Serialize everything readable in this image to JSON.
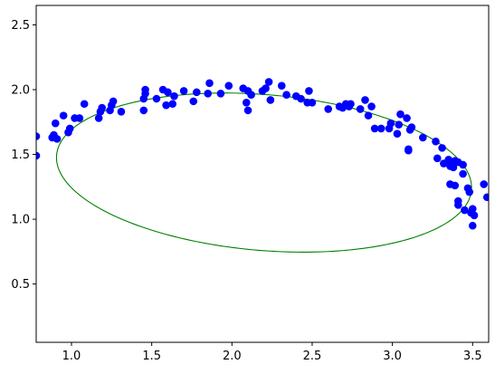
{
  "chart_data": {
    "type": "scatter",
    "title": "",
    "xlabel": "",
    "ylabel": "",
    "xlim": [
      0.78,
      3.6
    ],
    "ylim": [
      0.05,
      2.65
    ],
    "grid": false,
    "legend": "none",
    "xticks": [
      {
        "value": 1.0,
        "label": "1.0"
      },
      {
        "value": 1.5,
        "label": "1.5"
      },
      {
        "value": 2.0,
        "label": "2.0"
      },
      {
        "value": 2.5,
        "label": "2.5"
      },
      {
        "value": 3.0,
        "label": "3.0"
      },
      {
        "value": 3.5,
        "label": "3.5"
      }
    ],
    "yticks": [
      {
        "value": 0.5,
        "label": "0.5"
      },
      {
        "value": 1.0,
        "label": "1.0"
      },
      {
        "value": 1.5,
        "label": "1.5"
      },
      {
        "value": 2.0,
        "label": "2.0"
      },
      {
        "value": 2.5,
        "label": "2.5"
      }
    ],
    "series": [
      {
        "type": "scatter",
        "color": "#0000ff",
        "points": [
          [
            0.78,
            1.64
          ],
          [
            0.78,
            1.49
          ],
          [
            0.88,
            1.63
          ],
          [
            0.89,
            1.65
          ],
          [
            0.9,
            1.74
          ],
          [
            0.91,
            1.62
          ],
          [
            0.95,
            1.8
          ],
          [
            0.98,
            1.67
          ],
          [
            0.99,
            1.7
          ],
          [
            1.02,
            1.78
          ],
          [
            1.05,
            1.78
          ],
          [
            1.08,
            1.89
          ],
          [
            1.17,
            1.78
          ],
          [
            1.18,
            1.83
          ],
          [
            1.19,
            1.86
          ],
          [
            1.24,
            1.84
          ],
          [
            1.25,
            1.88
          ],
          [
            1.26,
            1.91
          ],
          [
            1.31,
            1.83
          ],
          [
            1.45,
            1.84
          ],
          [
            1.45,
            1.93
          ],
          [
            1.46,
            1.97
          ],
          [
            1.46,
            2.0
          ],
          [
            1.53,
            1.93
          ],
          [
            1.57,
            2.0
          ],
          [
            1.59,
            1.88
          ],
          [
            1.6,
            1.98
          ],
          [
            1.63,
            1.89
          ],
          [
            1.64,
            1.95
          ],
          [
            1.7,
            1.99
          ],
          [
            1.76,
            1.91
          ],
          [
            1.78,
            1.98
          ],
          [
            1.85,
            1.97
          ],
          [
            1.86,
            2.05
          ],
          [
            1.93,
            1.97
          ],
          [
            1.98,
            2.03
          ],
          [
            2.07,
            2.01
          ],
          [
            2.09,
            1.9
          ],
          [
            2.1,
            1.84
          ],
          [
            2.1,
            1.99
          ],
          [
            2.12,
            1.96
          ],
          [
            2.19,
            1.99
          ],
          [
            2.21,
            2.01
          ],
          [
            2.23,
            2.06
          ],
          [
            2.24,
            1.92
          ],
          [
            2.31,
            2.03
          ],
          [
            2.34,
            1.96
          ],
          [
            2.4,
            1.95
          ],
          [
            2.43,
            1.93
          ],
          [
            2.47,
            1.9
          ],
          [
            2.48,
            1.99
          ],
          [
            2.5,
            1.9
          ],
          [
            2.6,
            1.85
          ],
          [
            2.67,
            1.87
          ],
          [
            2.69,
            1.86
          ],
          [
            2.71,
            1.89
          ],
          [
            2.73,
            1.87
          ],
          [
            2.74,
            1.89
          ],
          [
            2.8,
            1.85
          ],
          [
            2.83,
            1.92
          ],
          [
            2.85,
            1.8
          ],
          [
            2.87,
            1.87
          ],
          [
            2.89,
            1.7
          ],
          [
            2.93,
            1.7
          ],
          [
            2.98,
            1.7
          ],
          [
            2.99,
            1.74
          ],
          [
            3.03,
            1.66
          ],
          [
            3.04,
            1.73
          ],
          [
            3.05,
            1.81
          ],
          [
            3.09,
            1.78
          ],
          [
            3.1,
            1.54
          ],
          [
            3.1,
            1.53
          ],
          [
            3.11,
            1.69
          ],
          [
            3.12,
            1.71
          ],
          [
            3.19,
            1.63
          ],
          [
            3.27,
            1.6
          ],
          [
            3.28,
            1.47
          ],
          [
            3.31,
            1.55
          ],
          [
            3.32,
            1.43
          ],
          [
            3.35,
            1.46
          ],
          [
            3.36,
            1.41
          ],
          [
            3.36,
            1.27
          ],
          [
            3.38,
            1.4
          ],
          [
            3.39,
            1.26
          ],
          [
            3.39,
            1.45
          ],
          [
            3.41,
            1.44
          ],
          [
            3.41,
            1.14
          ],
          [
            3.41,
            1.11
          ],
          [
            3.44,
            1.42
          ],
          [
            3.44,
            1.35
          ],
          [
            3.45,
            1.07
          ],
          [
            3.47,
            1.24
          ],
          [
            3.48,
            1.21
          ],
          [
            3.49,
            1.05
          ],
          [
            3.5,
            1.08
          ],
          [
            3.5,
            0.95
          ],
          [
            3.51,
            1.03
          ],
          [
            3.57,
            1.27
          ],
          [
            3.59,
            1.17
          ]
        ]
      },
      {
        "type": "line",
        "color": "#008000",
        "shape": "ellipse",
        "center": [
          2.2,
          1.36
        ],
        "semi_axes": [
          1.3,
          0.6
        ],
        "rotation_deg": -6.5
      }
    ]
  }
}
